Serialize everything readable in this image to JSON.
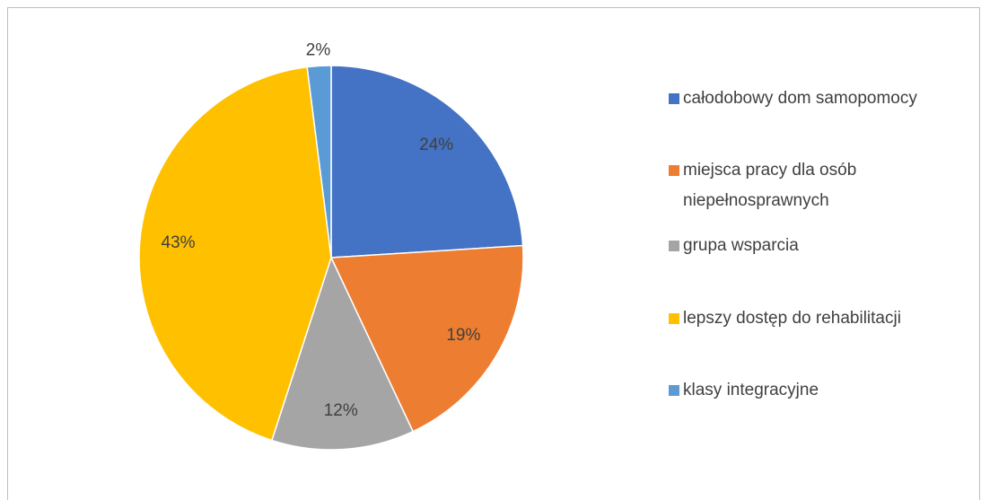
{
  "chart_data": {
    "type": "pie",
    "categories": [
      "całodobowy dom samopomocy",
      "miejsca pracy dla osób niepełnosprawnych",
      "grupa wsparcia",
      "lepszy dostęp do rehabilitacji",
      "klasy integracyjne"
    ],
    "values": [
      24,
      19,
      12,
      43,
      2
    ],
    "value_labels": [
      "24%",
      "19%",
      "12%",
      "43%",
      "2%"
    ],
    "colors": [
      "#4472c4",
      "#ed7d31",
      "#a5a5a5",
      "#ffc000",
      "#5b9bd5"
    ],
    "legend": "right"
  }
}
